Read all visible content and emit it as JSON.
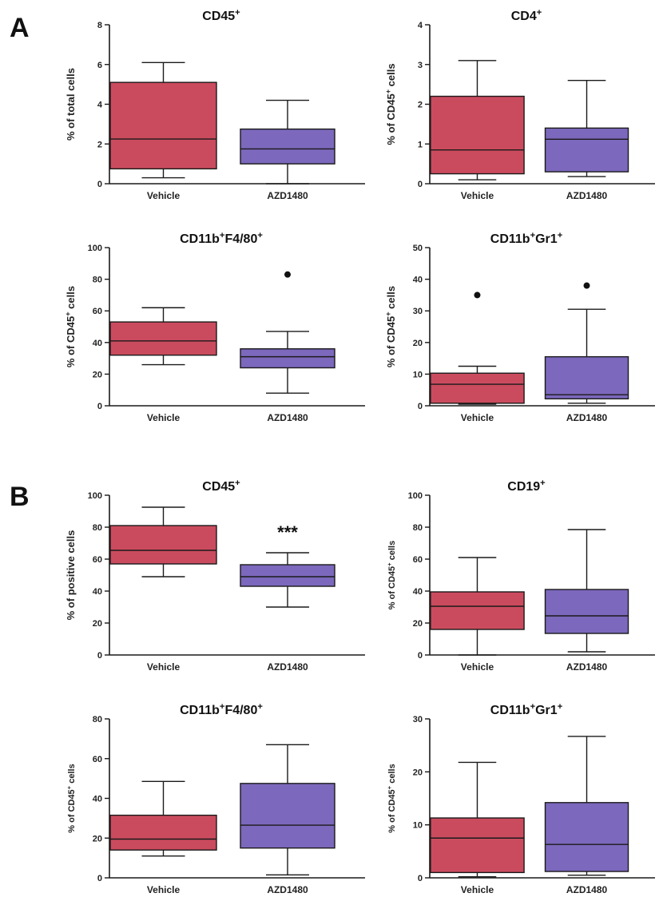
{
  "panels": {
    "a": "A",
    "b": "B"
  },
  "colors": {
    "vehicle": "#cb4b5e",
    "azd": "#7c68bc",
    "line": "#1a1a1a"
  },
  "chart_data": [
    {
      "type": "box",
      "panel": "A",
      "title": "CD45",
      "title_sup": "+",
      "ylabel": "% of total cells",
      "ylim": [
        0,
        8
      ],
      "yticks": [
        0,
        2,
        4,
        6,
        8
      ],
      "categories": [
        "Vehicle",
        "AZD1480"
      ],
      "boxes": [
        {
          "name": "Vehicle",
          "min": 0.3,
          "q1": 0.75,
          "median": 2.25,
          "q3": 5.1,
          "max": 6.1,
          "outliers": []
        },
        {
          "name": "AZD1480",
          "min": 0.0,
          "q1": 1.0,
          "median": 1.75,
          "q3": 2.75,
          "max": 4.2,
          "outliers": []
        }
      ]
    },
    {
      "type": "box",
      "panel": "A",
      "title": "CD4+",
      "ylabel": "% of CD45+ cells",
      "ylim": [
        0,
        4
      ],
      "yticks": [
        0,
        1,
        2,
        3,
        4
      ],
      "categories": [
        "Vehicle",
        "AZD1480"
      ],
      "boxes": [
        {
          "name": "Vehicle",
          "min": 0.1,
          "q1": 0.25,
          "median": 0.85,
          "q3": 2.2,
          "max": 3.1,
          "outliers": []
        },
        {
          "name": "AZD1480",
          "min": 0.18,
          "q1": 0.3,
          "median": 1.12,
          "q3": 1.4,
          "max": 2.6,
          "outliers": []
        }
      ]
    },
    {
      "type": "box",
      "panel": "A",
      "title": "CD11b+F4/80+",
      "ylabel": "% of CD45+ cells",
      "ylim": [
        0,
        100
      ],
      "yticks": [
        0,
        20,
        40,
        60,
        80,
        100
      ],
      "categories": [
        "Vehicle",
        "AZD1480"
      ],
      "boxes": [
        {
          "name": "Vehicle",
          "min": 26,
          "q1": 32,
          "median": 41,
          "q3": 53,
          "max": 62,
          "outliers": []
        },
        {
          "name": "AZD1480",
          "min": 8,
          "q1": 24,
          "median": 31,
          "q3": 36,
          "max": 47,
          "outliers": [
            83
          ]
        }
      ]
    },
    {
      "type": "box",
      "panel": "A",
      "title": "CD11b+Gr1+",
      "ylabel": "% of CD45+ cells",
      "ylim": [
        0,
        50
      ],
      "yticks": [
        0,
        10,
        20,
        30,
        40,
        50
      ],
      "categories": [
        "Vehicle",
        "AZD1480"
      ],
      "boxes": [
        {
          "name": "Vehicle",
          "min": 0.5,
          "q1": 0.8,
          "median": 6.8,
          "q3": 10.3,
          "max": 12.5,
          "outliers": [
            35
          ]
        },
        {
          "name": "AZD1480",
          "min": 0.8,
          "q1": 2.2,
          "median": 3.5,
          "q3": 15.5,
          "max": 30.5,
          "outliers": [
            38
          ]
        }
      ]
    },
    {
      "type": "box",
      "panel": "B",
      "title": "CD45",
      "title_sup": "+",
      "ylabel": "% of positive cells",
      "ylim": [
        0,
        100
      ],
      "yticks": [
        0,
        20,
        40,
        60,
        80,
        100
      ],
      "categories": [
        "Vehicle",
        "AZD1480"
      ],
      "annotation": "***",
      "boxes": [
        {
          "name": "Vehicle",
          "min": 49,
          "q1": 57,
          "median": 65.5,
          "q3": 81,
          "max": 92.5,
          "outliers": []
        },
        {
          "name": "AZD1480",
          "min": 30,
          "q1": 43,
          "median": 49,
          "q3": 56.5,
          "max": 64,
          "outliers": []
        }
      ]
    },
    {
      "type": "box",
      "panel": "B",
      "title": "CD19",
      "title_sup": "+",
      "ylabel": "% of CD45+ cells",
      "ylim": [
        0,
        100
      ],
      "yticks": [
        0,
        20,
        40,
        60,
        80,
        100
      ],
      "categories": [
        "Vehicle",
        "AZD1480"
      ],
      "boxes": [
        {
          "name": "Vehicle",
          "min": 0,
          "q1": 16,
          "median": 30.5,
          "q3": 39.5,
          "max": 61,
          "outliers": []
        },
        {
          "name": "AZD1480",
          "min": 2,
          "q1": 13.5,
          "median": 24.5,
          "q3": 41,
          "max": 78.5,
          "outliers": []
        }
      ]
    },
    {
      "type": "box",
      "panel": "B",
      "title": "CD11b+F4/80+",
      "ylabel": "% of CD45+ cells",
      "ylim": [
        0,
        80
      ],
      "yticks": [
        0,
        20,
        40,
        60,
        80
      ],
      "categories": [
        "Vehicle",
        "AZD1480"
      ],
      "boxes": [
        {
          "name": "Vehicle",
          "min": 11,
          "q1": 14,
          "median": 19.5,
          "q3": 31.5,
          "max": 48.5,
          "outliers": []
        },
        {
          "name": "AZD1480",
          "min": 1.5,
          "q1": 15,
          "median": 26.5,
          "q3": 47.5,
          "max": 67,
          "outliers": []
        }
      ]
    },
    {
      "type": "box",
      "panel": "B",
      "title": "CD11b+Gr1+",
      "ylabel": "% of CD45+ cells",
      "ylim": [
        0,
        30
      ],
      "yticks": [
        0,
        10,
        20,
        30
      ],
      "categories": [
        "Vehicle",
        "AZD1480"
      ],
      "boxes": [
        {
          "name": "Vehicle",
          "min": 0.2,
          "q1": 1.0,
          "median": 7.5,
          "q3": 11.3,
          "max": 21.8,
          "outliers": []
        },
        {
          "name": "AZD1480",
          "min": 0.5,
          "q1": 1.2,
          "median": 6.3,
          "q3": 14.2,
          "max": 26.7,
          "outliers": []
        }
      ]
    }
  ]
}
